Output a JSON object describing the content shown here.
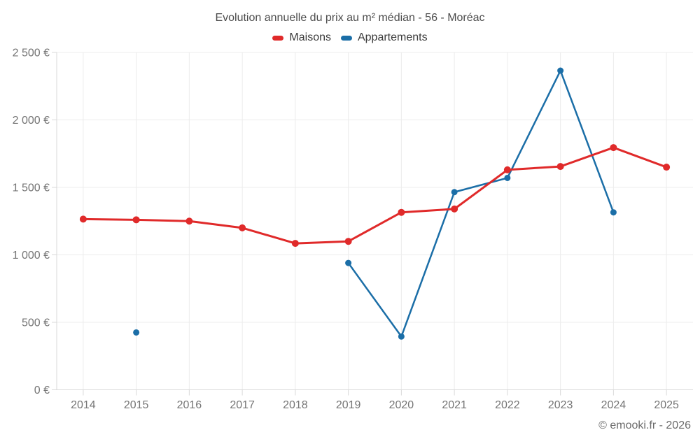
{
  "chart_data": {
    "type": "line",
    "title": "Evolution annuelle du prix au m² médian - 56 - Moréac",
    "x": [
      2014,
      2015,
      2016,
      2017,
      2018,
      2019,
      2020,
      2021,
      2022,
      2023,
      2024,
      2025
    ],
    "series": [
      {
        "name": "Maisons",
        "color": "#e02a2a",
        "line_width": 3,
        "point_radius": 5,
        "values": [
          1265,
          1260,
          1250,
          1200,
          1085,
          1100,
          1315,
          1340,
          1630,
          1655,
          1795,
          1650
        ]
      },
      {
        "name": "Appartements",
        "color": "#1b6ea7",
        "line_width": 2.5,
        "point_radius": 4.5,
        "values": [
          null,
          425,
          null,
          null,
          null,
          940,
          395,
          1465,
          1570,
          2365,
          1315,
          null
        ]
      }
    ],
    "ylim": [
      0,
      2500
    ],
    "y_ticks": [
      {
        "value": 0,
        "label": "0 €"
      },
      {
        "value": 500,
        "label": "500 €"
      },
      {
        "value": 1000,
        "label": "1 000 €"
      },
      {
        "value": 1500,
        "label": "1 500 €"
      },
      {
        "value": 2000,
        "label": "2 000 €"
      },
      {
        "value": 2500,
        "label": "2 500 €"
      }
    ],
    "grid": true,
    "legend_position": "top"
  },
  "footer": {
    "copyright": "© emooki.fr - 2026"
  },
  "colors": {
    "grid": "#ececec",
    "axis": "#d9d9d9",
    "tick_label": "#757575",
    "title_text": "#4d4d4d",
    "legend_text": "#3c3c3c",
    "copyright_text": "#6b6b6b"
  }
}
